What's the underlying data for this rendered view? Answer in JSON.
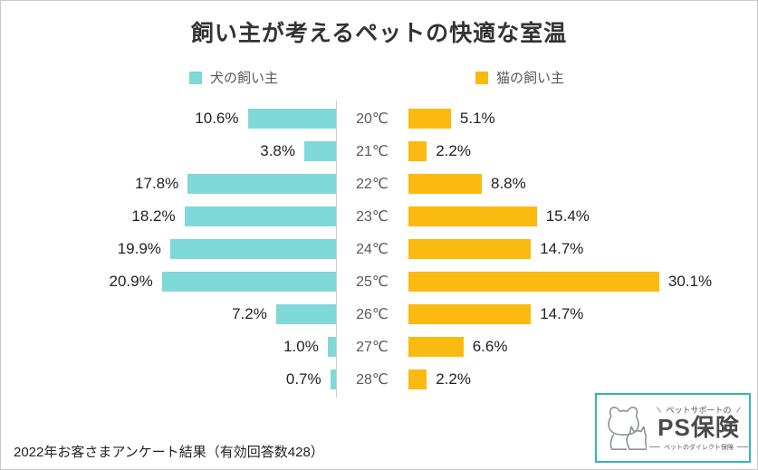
{
  "title": "飼い主が考えるペットの快適な室温",
  "legend": {
    "dog_label": "犬の飼い主",
    "cat_label": "猫の飼い主"
  },
  "colors": {
    "dog": "#7ed9d8",
    "cat": "#fbba10",
    "axis_line": "#cccccc",
    "logo_border": "#2fb8b8"
  },
  "footer": {
    "note": "2022年お客さまアンケート結果（有効回答数428）"
  },
  "logo": {
    "tagline": "ペットサポートの",
    "brand": "PS保険",
    "subtext": "ペットのダイレクト保険"
  },
  "chart_data": {
    "type": "bar",
    "variant": "diverging-horizontal",
    "title": "飼い主が考えるペットの快適な室温",
    "categories": [
      "20℃",
      "21℃",
      "22℃",
      "23℃",
      "24℃",
      "25℃",
      "26℃",
      "27℃",
      "28℃"
    ],
    "series": [
      {
        "name": "犬の飼い主",
        "values": [
          10.6,
          3.8,
          17.8,
          18.2,
          19.9,
          20.9,
          7.2,
          1.0,
          0.7
        ]
      },
      {
        "name": "猫の飼い主",
        "values": [
          5.1,
          2.2,
          8.8,
          15.4,
          14.7,
          30.1,
          14.7,
          6.6,
          2.2
        ]
      }
    ],
    "unit": "%",
    "axis_position": "center",
    "legend_position": "top",
    "rows": [
      {
        "temp": "20℃",
        "dog_label": "10.6%",
        "cat_label": "5.1%"
      },
      {
        "temp": "21℃",
        "dog_label": "3.8%",
        "cat_label": "2.2%"
      },
      {
        "temp": "22℃",
        "dog_label": "17.8%",
        "cat_label": "8.8%"
      },
      {
        "temp": "23℃",
        "dog_label": "18.2%",
        "cat_label": "15.4%"
      },
      {
        "temp": "24℃",
        "dog_label": "19.9%",
        "cat_label": "14.7%"
      },
      {
        "temp": "25℃",
        "dog_label": "20.9%",
        "cat_label": "30.1%"
      },
      {
        "temp": "26℃",
        "dog_label": "7.2%",
        "cat_label": "14.7%"
      },
      {
        "temp": "27℃",
        "dog_label": "1.0%",
        "cat_label": "6.6%"
      },
      {
        "temp": "28℃",
        "dog_label": "0.7%",
        "cat_label": "2.2%"
      }
    ]
  }
}
